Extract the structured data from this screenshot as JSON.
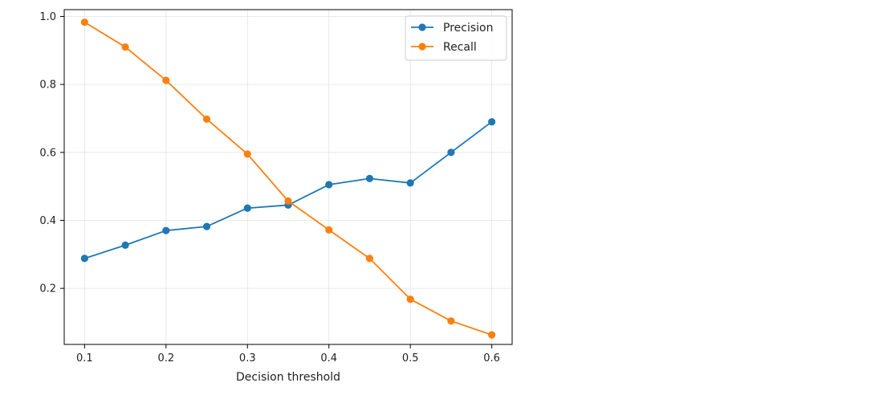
{
  "chart_data": {
    "type": "line",
    "title": "",
    "xlabel": "Decision threshold",
    "ylabel": "",
    "x": [
      0.1,
      0.15,
      0.2,
      0.25,
      0.3,
      0.35,
      0.4,
      0.45,
      0.5,
      0.55,
      0.6
    ],
    "xlim": [
      0.075,
      0.625
    ],
    "ylim": [
      0.035,
      1.02
    ],
    "xticks": [
      0.1,
      0.2,
      0.3,
      0.4,
      0.5,
      0.6
    ],
    "xtick_labels": [
      "0.1",
      "0.2",
      "0.3",
      "0.4",
      "0.5",
      "0.6"
    ],
    "yticks": [
      0.2,
      0.4,
      0.6,
      0.8,
      1.0
    ],
    "ytick_labels": [
      "0.2",
      "0.4",
      "0.6",
      "0.8",
      "1.0"
    ],
    "grid": true,
    "legend_position": "top-right",
    "series": [
      {
        "name": "Precision",
        "color": "#1f77b4",
        "values": [
          0.288,
          0.327,
          0.37,
          0.382,
          0.436,
          0.445,
          0.505,
          0.523,
          0.51,
          0.6,
          0.69
        ]
      },
      {
        "name": "Recall",
        "color": "#ff7f0e",
        "values": [
          0.983,
          0.91,
          0.812,
          0.698,
          0.595,
          0.457,
          0.372,
          0.288,
          0.168,
          0.104,
          0.063
        ]
      }
    ]
  }
}
